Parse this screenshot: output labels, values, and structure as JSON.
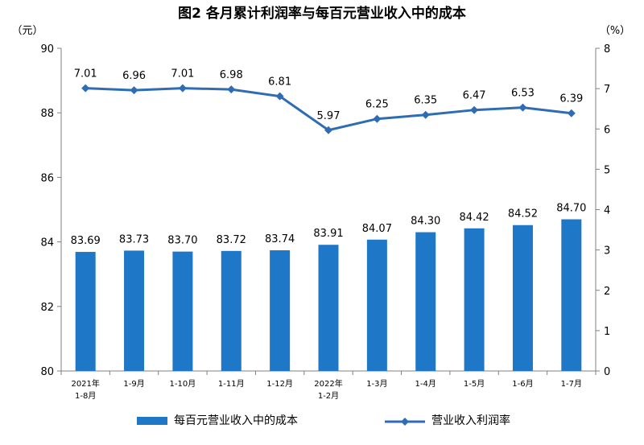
{
  "chart_data": {
    "type": "bar+line",
    "title": "图2  各月累计利润率与每百元营业收入中的成本",
    "left_unit": "（元）",
    "right_unit": "（%）",
    "categories": [
      [
        "2021年",
        "1-8月"
      ],
      [
        "1-9月"
      ],
      [
        "1-10月"
      ],
      [
        "1-11月"
      ],
      [
        "1-12月"
      ],
      [
        "2022年",
        "1-2月"
      ],
      [
        "1-3月"
      ],
      [
        "1-4月"
      ],
      [
        "1-5月"
      ],
      [
        "1-6月"
      ],
      [
        "1-7月"
      ]
    ],
    "left_axis": {
      "min": 80,
      "max": 90,
      "ticks": [
        "80",
        "82",
        "84",
        "86",
        "88",
        "90"
      ]
    },
    "right_axis": {
      "min": 0,
      "max": 8,
      "ticks": [
        "0",
        "1",
        "2",
        "3",
        "4",
        "5",
        "6",
        "7",
        "8"
      ]
    },
    "grid": false,
    "legend_position": "bottom",
    "series": [
      {
        "name": "每百元营业收入中的成本",
        "kind": "bar",
        "axis": "left",
        "color": "#1f77c8",
        "values": [
          83.69,
          83.73,
          83.7,
          83.72,
          83.74,
          83.91,
          84.07,
          84.3,
          84.42,
          84.52,
          84.7
        ],
        "labels": [
          "83.69",
          "83.73",
          "83.70",
          "83.72",
          "83.74",
          "83.91",
          "84.07",
          "84.30",
          "84.42",
          "84.52",
          "84.70"
        ]
      },
      {
        "name": "营业收入利润率",
        "kind": "line",
        "axis": "right",
        "color": "#2e6db4",
        "values": [
          7.01,
          6.96,
          7.01,
          6.98,
          6.81,
          5.97,
          6.25,
          6.35,
          6.47,
          6.53,
          6.39
        ],
        "labels": [
          "7.01",
          "6.96",
          "7.01",
          "6.98",
          "6.81",
          "5.97",
          "6.25",
          "6.35",
          "6.47",
          "6.53",
          "6.39"
        ]
      }
    ]
  }
}
